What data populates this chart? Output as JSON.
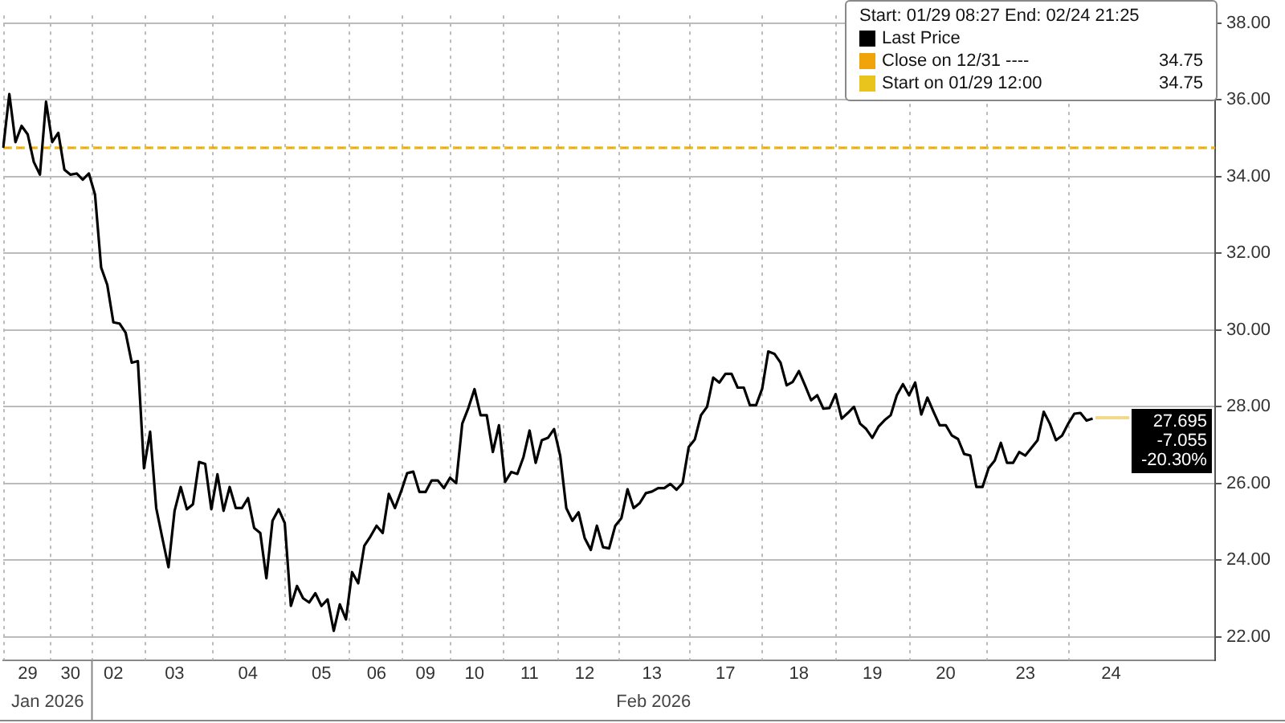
{
  "chart_data": {
    "type": "line",
    "legend_title": "Start: 01/29 08:27 End: 02/24 21:25",
    "legend": "top right",
    "grid": true,
    "marker": "none",
    "line_style": "solid",
    "categories": [
      null,
      null,
      null,
      null,
      "29",
      null,
      null,
      null,
      null,
      null,
      null,
      "30",
      null,
      null,
      null,
      null,
      null,
      null,
      "02",
      null,
      null,
      null,
      null,
      null,
      null,
      null,
      null,
      null,
      "03",
      null,
      null,
      null,
      null,
      null,
      null,
      null,
      null,
      null,
      null,
      null,
      "04",
      null,
      null,
      null,
      null,
      null,
      null,
      null,
      null,
      null,
      null,
      null,
      "05",
      null,
      null,
      null,
      null,
      null,
      null,
      null,
      null,
      "06",
      null,
      null,
      null,
      null,
      null,
      null,
      null,
      "09",
      null,
      null,
      null,
      null,
      null,
      null,
      null,
      "10",
      null,
      null,
      null,
      null,
      null,
      null,
      null,
      null,
      "11",
      null,
      null,
      null,
      null,
      null,
      null,
      null,
      null,
      "12",
      null,
      null,
      null,
      null,
      null,
      null,
      null,
      null,
      null,
      null,
      "13",
      null,
      null,
      null,
      null,
      null,
      null,
      null,
      null,
      null,
      null,
      null,
      "17",
      null,
      null,
      null,
      null,
      null,
      null,
      null,
      null,
      null,
      null,
      null,
      "18",
      null,
      null,
      null,
      null,
      null,
      null,
      null,
      null,
      null,
      null,
      null,
      "19",
      null,
      null,
      null,
      null,
      null,
      null,
      null,
      null,
      null,
      null,
      null,
      "20",
      null,
      null,
      null,
      null,
      null,
      null,
      null,
      null,
      null,
      null,
      null,
      null,
      "23",
      null,
      null,
      null,
      null,
      null,
      null,
      null,
      null,
      null,
      null,
      null,
      null,
      null,
      "24",
      null,
      null,
      null,
      null,
      null,
      null,
      null,
      null,
      null,
      null,
      null,
      null,
      null,
      null,
      null,
      null,
      null
    ],
    "ylim": [
      21.4,
      38.2
    ],
    "yticks": [
      {
        "value": 22,
        "label": "22.00"
      },
      {
        "value": 24,
        "label": "24.00"
      },
      {
        "value": 26,
        "label": "26.00"
      },
      {
        "value": 28,
        "label": "28.00"
      },
      {
        "value": 30,
        "label": "30.00"
      },
      {
        "value": 32,
        "label": "32.00"
      },
      {
        "value": 34,
        "label": "34.00"
      },
      {
        "value": 36,
        "label": "36.00"
      },
      {
        "value": 38,
        "label": "38.00"
      }
    ],
    "ref_lines": [
      {
        "axis": "y",
        "value": 34.75,
        "label": "Close on 12/31 ---- 34.75",
        "color": "#f0a30a",
        "line_style": "dashed"
      },
      {
        "axis": "y",
        "value": 34.75,
        "label": "Start on 01/29 12:00 34.75",
        "color": "#e8c41c",
        "line_style": "dotted"
      }
    ],
    "annotations": [
      "Jan 2026",
      "Feb 2026",
      "27.695\n-7.055\n-20.30%"
    ],
    "series": [
      {
        "name": "Last Price",
        "color": "#000000",
        "values": [
          34.75,
          36.15,
          34.9,
          35.32,
          35.1,
          34.38,
          34.05,
          35.95,
          34.9,
          35.14,
          34.18,
          34.05,
          34.08,
          33.92,
          34.08,
          33.53,
          31.63,
          31.18,
          30.2,
          30.17,
          29.93,
          29.15,
          29.19,
          26.4,
          27.35,
          25.36,
          24.58,
          23.82,
          25.29,
          25.91,
          25.33,
          25.46,
          26.56,
          26.51,
          25.33,
          26.24,
          25.29,
          25.91,
          25.36,
          25.36,
          25.62,
          24.84,
          24.71,
          23.53,
          25.03,
          25.33,
          24.97,
          22.81,
          23.33,
          23.01,
          22.9,
          23.14,
          22.81,
          22.98,
          22.16,
          22.85,
          22.46,
          23.69,
          23.4,
          24.38,
          24.62,
          24.9,
          24.71,
          25.73,
          25.36,
          25.79,
          26.27,
          26.31,
          25.78,
          25.78,
          26.08,
          26.08,
          25.88,
          26.15,
          26.01,
          27.56,
          27.97,
          28.46,
          27.78,
          27.78,
          26.82,
          27.52,
          26.04,
          26.3,
          26.25,
          26.69,
          27.38,
          26.54,
          27.13,
          27.19,
          27.42,
          26.73,
          25.36,
          25.03,
          25.25,
          24.58,
          24.27,
          24.9,
          24.34,
          24.31,
          24.9,
          25.1,
          25.85,
          25.36,
          25.49,
          25.75,
          25.79,
          25.88,
          25.88,
          25.99,
          25.84,
          26.01,
          26.95,
          27.15,
          27.78,
          28.0,
          28.76,
          28.63,
          28.86,
          28.86,
          28.5,
          28.5,
          28.04,
          28.04,
          28.47,
          29.44,
          29.38,
          29.15,
          28.56,
          28.65,
          28.93,
          28.56,
          28.17,
          28.3,
          27.95,
          27.97,
          28.33,
          27.69,
          27.84,
          28.0,
          27.56,
          27.42,
          27.19,
          27.48,
          27.65,
          27.78,
          28.3,
          28.59,
          28.3,
          28.63,
          27.8,
          28.24,
          27.87,
          27.52,
          27.52,
          27.25,
          27.16,
          26.77,
          26.73,
          25.91,
          25.91,
          26.4,
          26.6,
          27.06,
          26.54,
          26.54,
          26.82,
          26.73,
          26.93,
          27.13,
          27.87,
          27.56,
          27.13,
          27.25,
          27.56,
          27.82,
          27.84,
          27.64,
          27.695,
          null,
          null,
          null,
          null,
          null,
          null,
          null,
          null,
          null,
          null,
          null,
          null,
          null,
          null,
          null,
          null,
          null,
          null,
          null,
          null
        ]
      }
    ]
  }
}
